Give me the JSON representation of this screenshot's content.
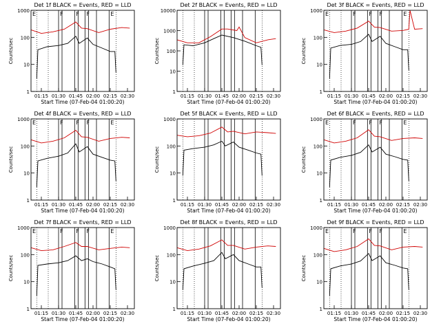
{
  "chart_data": [
    {
      "type": "line",
      "title": "Det 1f BLACK = Events, RED = LLD",
      "xlabel": "Start Time (07-Feb-04 01:00:20)",
      "ylabel": "Counts/sec",
      "yscale": "log",
      "ylim": [
        1,
        1000
      ],
      "xlim": [
        "01:06",
        "02:36"
      ],
      "x_ticks": [
        "01:15",
        "01:30",
        "01:45",
        "02:00",
        "02:15",
        "02:30"
      ],
      "y_ticks": [
        "1",
        "10",
        "100",
        "1000"
      ],
      "flags": [
        "E",
        "F",
        "F",
        "F",
        "E"
      ],
      "series": [
        {
          "color": "#000000",
          "x": [
            "01:11",
            "01:12",
            "01:20",
            "01:30",
            "01:38",
            "01:45",
            "01:48",
            "01:55",
            "02:00",
            "02:08",
            "02:15",
            "02:19",
            "02:20"
          ],
          "y": [
            3,
            35,
            45,
            50,
            60,
            110,
            60,
            95,
            55,
            40,
            30,
            30,
            5
          ]
        },
        {
          "color": "#d00000",
          "x": [
            "01:06",
            "01:15",
            "01:25",
            "01:35",
            "01:45",
            "01:50",
            "01:55",
            "02:05",
            "02:15",
            "02:25",
            "02:32"
          ],
          "y": [
            190,
            140,
            160,
            200,
            370,
            220,
            210,
            150,
            200,
            230,
            220
          ]
        }
      ]
    },
    {
      "type": "line",
      "title": "Det 2f BLACK = Events, RED = LLD",
      "xlabel": "Start Time (07-Feb-04 01:00:20)",
      "ylabel": "Counts/sec",
      "yscale": "log",
      "ylim": [
        1,
        10000
      ],
      "xlim": [
        "01:06",
        "02:36"
      ],
      "x_ticks": [
        "01:15",
        "01:30",
        "01:45",
        "02:00",
        "02:15",
        "02:30"
      ],
      "y_ticks": [
        "1",
        "10",
        "100",
        "1000",
        "10000"
      ],
      "flags": [],
      "series": [
        {
          "color": "#000000",
          "x": [
            "01:11",
            "01:12",
            "01:20",
            "01:30",
            "01:38",
            "01:45",
            "01:55",
            "02:05",
            "02:15",
            "02:19",
            "02:20"
          ],
          "y": [
            20,
            200,
            180,
            250,
            400,
            600,
            450,
            300,
            180,
            150,
            20
          ]
        },
        {
          "color": "#d00000",
          "x": [
            "01:06",
            "01:15",
            "01:25",
            "01:35",
            "01:45",
            "01:50",
            "01:58",
            "02:00",
            "02:05",
            "02:15",
            "02:25",
            "02:32"
          ],
          "y": [
            350,
            250,
            250,
            500,
            1200,
            1200,
            1000,
            1500,
            450,
            250,
            350,
            400
          ]
        }
      ]
    },
    {
      "type": "line",
      "title": "Det 3f BLACK = Events, RED = LLD",
      "xlabel": "Start Time (07-Feb-04 01:00:20)",
      "ylabel": "Counts/sec",
      "yscale": "log",
      "ylim": [
        1,
        1000
      ],
      "xlim": [
        "01:06",
        "02:36"
      ],
      "x_ticks": [
        "01:15",
        "01:30",
        "01:45",
        "02:00",
        "02:15",
        "02:30"
      ],
      "y_ticks": [
        "1",
        "10",
        "100",
        "1000"
      ],
      "flags": [
        "E",
        "F",
        "F",
        "F",
        "E"
      ],
      "series": [
        {
          "color": "#000000",
          "x": [
            "01:11",
            "01:12",
            "01:20",
            "01:30",
            "01:38",
            "01:45",
            "01:48",
            "01:55",
            "02:00",
            "02:08",
            "02:15",
            "02:19",
            "02:20"
          ],
          "y": [
            3,
            40,
            50,
            55,
            70,
            130,
            70,
            110,
            60,
            45,
            35,
            35,
            6
          ]
        },
        {
          "color": "#d00000",
          "x": [
            "01:06",
            "01:15",
            "01:25",
            "01:35",
            "01:45",
            "01:50",
            "01:55",
            "02:05",
            "02:15",
            "02:20",
            "02:21",
            "02:25",
            "02:32"
          ],
          "y": [
            190,
            150,
            170,
            220,
            400,
            240,
            230,
            170,
            180,
            200,
            1000,
            200,
            210
          ]
        }
      ]
    },
    {
      "type": "line",
      "title": "Det 4f BLACK = Events, RED = LLD",
      "xlabel": "Start Time (07-Feb-04 01:00:20)",
      "ylabel": "Counts/sec",
      "yscale": "log",
      "ylim": [
        1,
        1000
      ],
      "xlim": [
        "01:06",
        "02:36"
      ],
      "x_ticks": [
        "01:15",
        "01:30",
        "01:45",
        "02:00",
        "02:15",
        "02:30"
      ],
      "y_ticks": [
        "1",
        "10",
        "100",
        "1000"
      ],
      "flags": [
        "E",
        "F",
        "F",
        "F",
        "E"
      ],
      "series": [
        {
          "color": "#000000",
          "x": [
            "01:11",
            "01:12",
            "01:20",
            "01:30",
            "01:38",
            "01:45",
            "01:48",
            "01:55",
            "02:00",
            "02:08",
            "02:15",
            "02:19",
            "02:20"
          ],
          "y": [
            3,
            28,
            35,
            42,
            55,
            120,
            60,
            95,
            50,
            38,
            30,
            28,
            5
          ]
        },
        {
          "color": "#d00000",
          "x": [
            "01:06",
            "01:15",
            "01:25",
            "01:35",
            "01:45",
            "01:50",
            "01:55",
            "02:05",
            "02:15",
            "02:25",
            "02:32"
          ],
          "y": [
            170,
            130,
            150,
            200,
            380,
            220,
            210,
            150,
            190,
            210,
            200
          ]
        }
      ]
    },
    {
      "type": "line",
      "title": "Det 5f BLACK = Events, RED = LLD",
      "xlabel": "Start Time (07-Feb-04 01:00:20)",
      "ylabel": "Counts/sec",
      "yscale": "log",
      "ylim": [
        1,
        1000
      ],
      "xlim": [
        "01:06",
        "02:36"
      ],
      "x_ticks": [
        "01:15",
        "01:30",
        "01:45",
        "02:00",
        "02:15",
        "02:30"
      ],
      "y_ticks": [
        "1",
        "10",
        "100",
        "1000"
      ],
      "flags": [],
      "series": [
        {
          "color": "#000000",
          "x": [
            "01:11",
            "01:12",
            "01:20",
            "01:30",
            "01:38",
            "01:45",
            "01:48",
            "01:55",
            "02:00",
            "02:08",
            "02:15",
            "02:19",
            "02:20"
          ],
          "y": [
            8,
            70,
            80,
            90,
            110,
            150,
            100,
            140,
            90,
            70,
            55,
            50,
            8
          ]
        },
        {
          "color": "#d00000",
          "x": [
            "01:06",
            "01:15",
            "01:25",
            "01:35",
            "01:45",
            "01:50",
            "01:55",
            "02:05",
            "02:15",
            "02:25",
            "02:32"
          ],
          "y": [
            250,
            220,
            240,
            300,
            500,
            330,
            350,
            280,
            330,
            310,
            290
          ]
        }
      ]
    },
    {
      "type": "line",
      "title": "Det 6f BLACK = Events, RED = LLD",
      "xlabel": "Start Time (07-Feb-04 01:00:20)",
      "ylabel": "Counts/sec",
      "yscale": "log",
      "ylim": [
        1,
        1000
      ],
      "xlim": [
        "01:06",
        "02:36"
      ],
      "x_ticks": [
        "01:15",
        "01:30",
        "01:45",
        "02:00",
        "02:15",
        "02:30"
      ],
      "y_ticks": [
        "1",
        "10",
        "100",
        "1000"
      ],
      "flags": [
        "E",
        "F",
        "F",
        "F",
        "E"
      ],
      "series": [
        {
          "color": "#000000",
          "x": [
            "01:11",
            "01:12",
            "01:20",
            "01:30",
            "01:38",
            "01:45",
            "01:48",
            "01:55",
            "02:00",
            "02:08",
            "02:15",
            "02:19",
            "02:20"
          ],
          "y": [
            3,
            30,
            38,
            45,
            58,
            110,
            60,
            90,
            50,
            40,
            32,
            30,
            5
          ]
        },
        {
          "color": "#d00000",
          "x": [
            "01:06",
            "01:15",
            "01:25",
            "01:35",
            "01:45",
            "01:50",
            "01:55",
            "02:05",
            "02:15",
            "02:25",
            "02:32"
          ],
          "y": [
            170,
            130,
            150,
            200,
            400,
            230,
            220,
            160,
            190,
            200,
            190
          ]
        }
      ]
    },
    {
      "type": "line",
      "title": "Det 7f BLACK = Events, RED = LLD",
      "xlabel": "Start Time (07-Feb-04 01:00:20)",
      "ylabel": "Counts/sec",
      "yscale": "log",
      "ylim": [
        1,
        1000
      ],
      "xlim": [
        "01:06",
        "02:36"
      ],
      "x_ticks": [
        "01:15",
        "01:30",
        "01:45",
        "02:00",
        "02:15",
        "02:30"
      ],
      "y_ticks": [
        "1",
        "10",
        "100",
        "1000"
      ],
      "flags": [
        "E",
        "F",
        "F",
        "F",
        "E"
      ],
      "series": [
        {
          "color": "#000000",
          "x": [
            "01:11",
            "01:12",
            "01:20",
            "01:30",
            "01:38",
            "01:45",
            "01:50",
            "01:55",
            "02:00",
            "02:08",
            "02:15",
            "02:19",
            "02:20"
          ],
          "y": [
            3,
            40,
            45,
            50,
            60,
            90,
            60,
            70,
            55,
            45,
            35,
            30,
            5
          ]
        },
        {
          "color": "#d00000",
          "x": [
            "01:06",
            "01:15",
            "01:25",
            "01:35",
            "01:45",
            "01:50",
            "01:55",
            "02:05",
            "02:15",
            "02:25",
            "02:32"
          ],
          "y": [
            180,
            140,
            150,
            200,
            280,
            200,
            200,
            150,
            170,
            190,
            180
          ]
        }
      ]
    },
    {
      "type": "line",
      "title": "Det 8f BLACK = Events, RED = LLD",
      "xlabel": "Start Time (07-Feb-04 01:00:20)",
      "ylabel": "Counts/sec",
      "yscale": "log",
      "ylim": [
        1,
        1000
      ],
      "xlim": [
        "01:06",
        "02:36"
      ],
      "x_ticks": [
        "01:15",
        "01:30",
        "01:45",
        "02:00",
        "02:15",
        "02:30"
      ],
      "y_ticks": [
        "1",
        "10",
        "100",
        "1000"
      ],
      "flags": [],
      "series": [
        {
          "color": "#000000",
          "x": [
            "01:11",
            "01:12",
            "01:20",
            "01:30",
            "01:38",
            "01:45",
            "01:48",
            "01:55",
            "02:00",
            "02:08",
            "02:15",
            "02:19",
            "02:20"
          ],
          "y": [
            5,
            30,
            38,
            48,
            60,
            120,
            70,
            100,
            60,
            45,
            35,
            35,
            6
          ]
        },
        {
          "color": "#d00000",
          "x": [
            "01:06",
            "01:15",
            "01:25",
            "01:35",
            "01:45",
            "01:50",
            "01:55",
            "02:05",
            "02:15",
            "02:25",
            "02:32"
          ],
          "y": [
            180,
            140,
            160,
            210,
            350,
            220,
            220,
            160,
            190,
            210,
            200
          ]
        }
      ]
    },
    {
      "type": "line",
      "title": "Det 9f BLACK = Events, RED = LLD",
      "xlabel": "Start Time (07-Feb-04 01:00:20)",
      "ylabel": "Counts/sec",
      "yscale": "log",
      "ylim": [
        1,
        1000
      ],
      "xlim": [
        "01:06",
        "02:36"
      ],
      "x_ticks": [
        "01:15",
        "01:30",
        "01:45",
        "02:00",
        "02:15",
        "02:30"
      ],
      "y_ticks": [
        "1",
        "10",
        "100",
        "1000"
      ],
      "flags": [
        "E",
        "F",
        "F",
        "F",
        "E"
      ],
      "series": [
        {
          "color": "#000000",
          "x": [
            "01:11",
            "01:12",
            "01:20",
            "01:30",
            "01:38",
            "01:45",
            "01:48",
            "01:55",
            "02:00",
            "02:08",
            "02:15",
            "02:19",
            "02:20"
          ],
          "y": [
            3,
            30,
            38,
            45,
            58,
            110,
            60,
            90,
            50,
            40,
            32,
            30,
            5
          ]
        },
        {
          "color": "#d00000",
          "x": [
            "01:06",
            "01:15",
            "01:25",
            "01:35",
            "01:45",
            "01:50",
            "01:55",
            "02:05",
            "02:15",
            "02:25",
            "02:32"
          ],
          "y": [
            170,
            130,
            150,
            200,
            380,
            220,
            210,
            150,
            190,
            200,
            190
          ]
        }
      ]
    }
  ],
  "vlines": {
    "solid": [
      "01:30",
      "01:33",
      "01:44",
      "01:47",
      "01:53",
      "01:56",
      "02:03",
      "02:14"
    ],
    "dotted": [
      "01:11",
      "01:21",
      "02:20"
    ]
  }
}
